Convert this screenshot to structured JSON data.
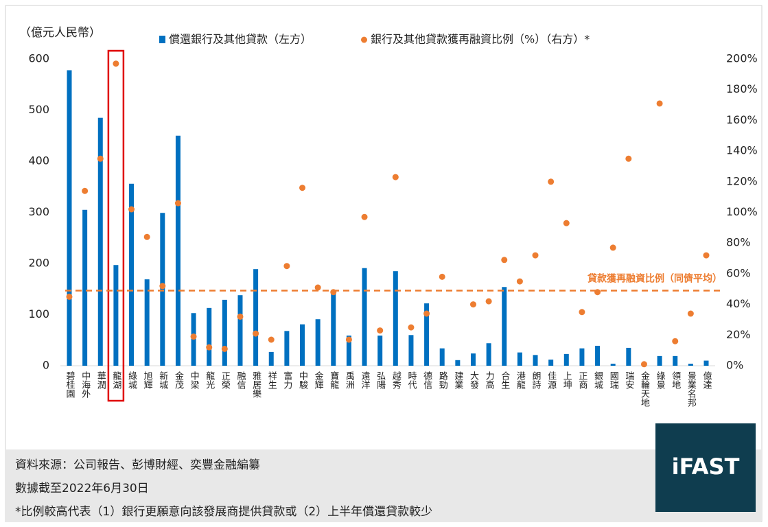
{
  "chart_data": {
    "type": "combo",
    "y_label": "（億元人民幣）",
    "categories": [
      "碧桂園",
      "中海外",
      "華潤",
      "龍湖",
      "綠城",
      "旭輝",
      "新城",
      "金茂",
      "中梁",
      "龍光",
      "正榮",
      "融信",
      "雅居樂",
      "祥生",
      "富力",
      "中駿",
      "金輝",
      "寶龍",
      "禹洲",
      "遠洋",
      "弘陽",
      "越秀",
      "時代",
      "德信",
      "路勁",
      "建業",
      "大發",
      "力高",
      "合生",
      "港龍",
      "朗詩",
      "佳源",
      "上坤",
      "正商",
      "銀城",
      "國瑞",
      "瑞安",
      "金輪天地",
      "綠景",
      "領地",
      "景業名邦",
      "億達"
    ],
    "series": [
      {
        "name": "償還銀行及其他貸款（左方）",
        "type": "bar",
        "axis": "y",
        "color": "#0070c0",
        "values": [
          578,
          305,
          485,
          197,
          356,
          169,
          299,
          450,
          103,
          113,
          129,
          138,
          189,
          27,
          68,
          81,
          91,
          145,
          59,
          191,
          59,
          185,
          60,
          122,
          34,
          11,
          24,
          44,
          154,
          26,
          21,
          12,
          23,
          34,
          39,
          4,
          35,
          0,
          19,
          19,
          4,
          10
        ]
      },
      {
        "name": "銀行及其他貸款獲再融資比例（%）（右方）*",
        "type": "scatter",
        "axis": "y2",
        "color": "#ed7d31",
        "values": [
          45,
          114,
          135,
          197,
          102,
          84,
          52,
          106,
          19,
          12,
          11,
          32,
          21,
          17,
          65,
          116,
          51,
          48,
          17,
          97,
          23,
          123,
          25,
          34,
          58,
          null,
          40,
          42,
          69,
          55,
          72,
          120,
          93,
          35,
          48,
          77,
          135,
          1,
          171,
          16,
          34,
          72
        ]
      }
    ],
    "ylim": [
      0,
      600
    ],
    "yticks": [
      0,
      100,
      200,
      300,
      400,
      500,
      600
    ],
    "y2lim": [
      0,
      200
    ],
    "y2ticks": [
      {
        "value": 0,
        "label": "0%"
      },
      {
        "value": 20,
        "label": "20%"
      },
      {
        "value": 40,
        "label": "40%"
      },
      {
        "value": 60,
        "label": "60%"
      },
      {
        "value": 80,
        "label": "80%"
      },
      {
        "value": 100,
        "label": "100%"
      },
      {
        "value": 120,
        "label": "120%"
      },
      {
        "value": 140,
        "label": "140%"
      },
      {
        "value": 160,
        "label": "160%"
      },
      {
        "value": 180,
        "label": "180%"
      },
      {
        "value": 200,
        "label": "200%"
      }
    ],
    "reference_line": {
      "value": 49,
      "label": "貸款獲再融資比例（同儕平均）",
      "axis": "y2",
      "color": "#ed7d31"
    },
    "highlight": 3,
    "highlight_color": "#e00000",
    "grid": false
  },
  "footer": {
    "lines": [
      "資料來源：公司報告、彭博財經、奕豐金融編纂",
      "數據截至2022年6月30日",
      "*比例較高代表（1）銀行更願意向該發展商提供貸款或（2）上半年償還貸款較少"
    ],
    "logo": "iFAST"
  }
}
